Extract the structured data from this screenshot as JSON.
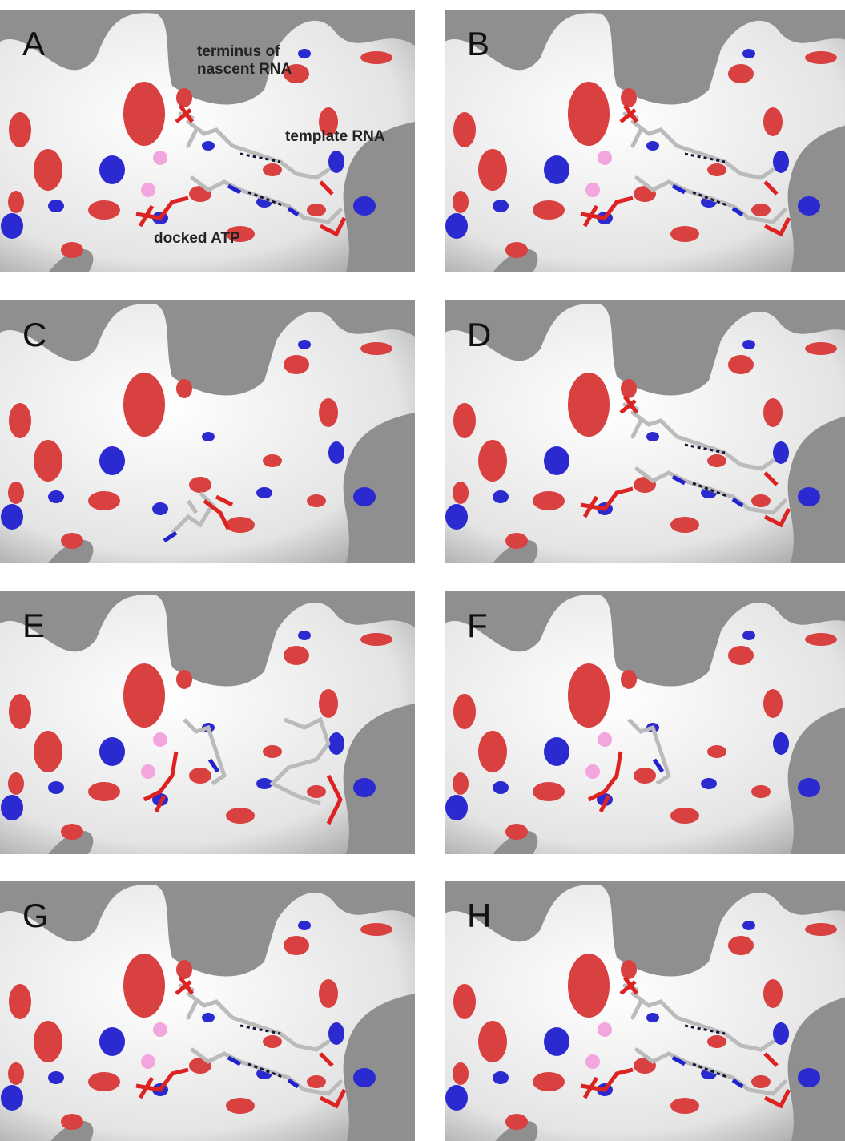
{
  "panels": [
    {
      "label": "A",
      "annotations": [
        "terminus of nascent RNA",
        "template RNA",
        "docked ATP"
      ]
    },
    {
      "label": "B"
    },
    {
      "label": "C"
    },
    {
      "label": "D"
    },
    {
      "label": "E"
    },
    {
      "label": "F"
    },
    {
      "label": "G"
    },
    {
      "label": "H"
    }
  ]
}
